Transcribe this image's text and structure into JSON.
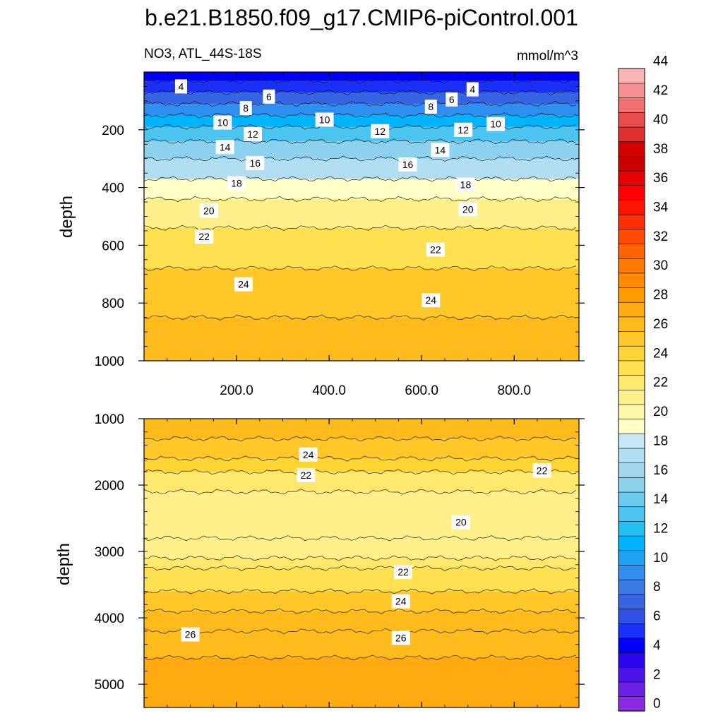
{
  "chart_data": {
    "type": "heatmap",
    "title": "b.e21.B1850.f09_g17.CMIP6-piControl.001",
    "subtitle_left": "NO3, ATL_44S-18S",
    "subtitle_right": "mmol/m^3",
    "ylabel": "depth",
    "xlabel": "",
    "xlim": [
      0,
      940
    ],
    "x_ticks": [
      200,
      400,
      600,
      800
    ],
    "x_tick_labels": [
      "200.0",
      "400.0",
      "600.0",
      "800.0"
    ],
    "colorbar": {
      "levels": [
        0,
        2,
        4,
        6,
        8,
        10,
        12,
        14,
        16,
        18,
        20,
        22,
        24,
        26,
        28,
        30,
        32,
        34,
        36,
        38,
        40,
        42,
        44
      ],
      "labels": [
        "0",
        "2",
        "4",
        "6",
        "8",
        "10",
        "12",
        "14",
        "16",
        "18",
        "20",
        "22",
        "24",
        "26",
        "28",
        "30",
        "32",
        "34",
        "36",
        "38",
        "40",
        "42",
        "44"
      ],
      "colors": [
        "#8a2be2",
        "#6a1fe6",
        "#4b14e8",
        "#2b05f0",
        "#0000ff",
        "#1a2ff7",
        "#2e4fe8",
        "#3565e3",
        "#3b7be6",
        "#2f8ff0",
        "#1ea3f5",
        "#00b4ff",
        "#23c0f2",
        "#4cc6f0",
        "#6ccaf0",
        "#8cd2ef",
        "#a2d7ef",
        "#b2def2",
        "#c6e6f5",
        "#ffffc8",
        "#fff7a8",
        "#fff08c",
        "#ffe86e",
        "#ffe050",
        "#ffd534",
        "#ffc828",
        "#ffbb1c",
        "#ffaa10",
        "#ff9d00",
        "#ff8a00",
        "#ff7800",
        "#ff6200",
        "#ff4a00",
        "#ff2e00",
        "#ff1400",
        "#ff0000",
        "#e60000",
        "#cc0000",
        "#d40000",
        "#e03030",
        "#e84c4c",
        "#f07070",
        "#f49090",
        "#ffb4b4"
      ]
    },
    "panels": [
      {
        "name": "upper",
        "ylim": [
          1000,
          0
        ],
        "y_ticks": [
          200,
          400,
          600,
          800,
          1000
        ],
        "y_tick_labels": [
          "200",
          "400",
          "600",
          "800",
          "1000"
        ],
        "bands": [
          {
            "depth": 0,
            "value": 3
          },
          {
            "depth": 30,
            "value": 4
          },
          {
            "depth": 70,
            "value": 6
          },
          {
            "depth": 110,
            "value": 8
          },
          {
            "depth": 150,
            "value": 10
          },
          {
            "depth": 190,
            "value": 12
          },
          {
            "depth": 240,
            "value": 14
          },
          {
            "depth": 300,
            "value": 16
          },
          {
            "depth": 370,
            "value": 18
          },
          {
            "depth": 440,
            "value": 20
          },
          {
            "depth": 540,
            "value": 22
          },
          {
            "depth": 680,
            "value": 24
          },
          {
            "depth": 850,
            "value": 25
          },
          {
            "depth": 1000,
            "value": 26
          }
        ],
        "contour_labels": [
          {
            "text": "4",
            "x": 80,
            "depth": 50
          },
          {
            "text": "6",
            "x": 270,
            "depth": 85
          },
          {
            "text": "8",
            "x": 220,
            "depth": 125
          },
          {
            "text": "10",
            "x": 170,
            "depth": 175
          },
          {
            "text": "12",
            "x": 235,
            "depth": 215
          },
          {
            "text": "14",
            "x": 175,
            "depth": 260
          },
          {
            "text": "16",
            "x": 240,
            "depth": 315
          },
          {
            "text": "18",
            "x": 200,
            "depth": 385
          },
          {
            "text": "20",
            "x": 140,
            "depth": 480
          },
          {
            "text": "22",
            "x": 130,
            "depth": 570
          },
          {
            "text": "10",
            "x": 390,
            "depth": 165
          },
          {
            "text": "12",
            "x": 510,
            "depth": 205
          },
          {
            "text": "16",
            "x": 570,
            "depth": 320
          },
          {
            "text": "14",
            "x": 640,
            "depth": 270
          },
          {
            "text": "8",
            "x": 620,
            "depth": 120
          },
          {
            "text": "6",
            "x": 665,
            "depth": 95
          },
          {
            "text": "4",
            "x": 710,
            "depth": 60
          },
          {
            "text": "12",
            "x": 690,
            "depth": 200
          },
          {
            "text": "10",
            "x": 760,
            "depth": 180
          },
          {
            "text": "18",
            "x": 695,
            "depth": 390
          },
          {
            "text": "20",
            "x": 700,
            "depth": 475
          },
          {
            "text": "22",
            "x": 630,
            "depth": 615
          },
          {
            "text": "24",
            "x": 215,
            "depth": 735
          },
          {
            "text": "24",
            "x": 620,
            "depth": 790
          }
        ]
      },
      {
        "name": "lower",
        "ylim": [
          5350,
          1000
        ],
        "y_ticks": [
          1000,
          2000,
          3000,
          4000,
          5000
        ],
        "y_tick_labels": [
          "1000",
          "2000",
          "3000",
          "4000",
          "5000"
        ],
        "bands": [
          {
            "depth": 1000,
            "value": 26
          },
          {
            "depth": 1300,
            "value": 25
          },
          {
            "depth": 1600,
            "value": 24
          },
          {
            "depth": 1800,
            "value": 23
          },
          {
            "depth": 2100,
            "value": 21
          },
          {
            "depth": 2800,
            "value": 20.5
          },
          {
            "depth": 3100,
            "value": 21
          },
          {
            "depth": 3250,
            "value": 22.5
          },
          {
            "depth": 3600,
            "value": 24
          },
          {
            "depth": 3900,
            "value": 25
          },
          {
            "depth": 4200,
            "value": 26
          },
          {
            "depth": 4600,
            "value": 26.5
          },
          {
            "depth": 5350,
            "value": 26.5
          }
        ],
        "contour_labels": [
          {
            "text": "24",
            "x": 355,
            "depth": 1540
          },
          {
            "text": "22",
            "x": 350,
            "depth": 1850
          },
          {
            "text": "22",
            "x": 860,
            "depth": 1780
          },
          {
            "text": "20",
            "x": 685,
            "depth": 2560
          },
          {
            "text": "22",
            "x": 560,
            "depth": 3310
          },
          {
            "text": "24",
            "x": 555,
            "depth": 3750
          },
          {
            "text": "26",
            "x": 100,
            "depth": 4250
          },
          {
            "text": "26",
            "x": 555,
            "depth": 4300
          }
        ]
      }
    ]
  }
}
